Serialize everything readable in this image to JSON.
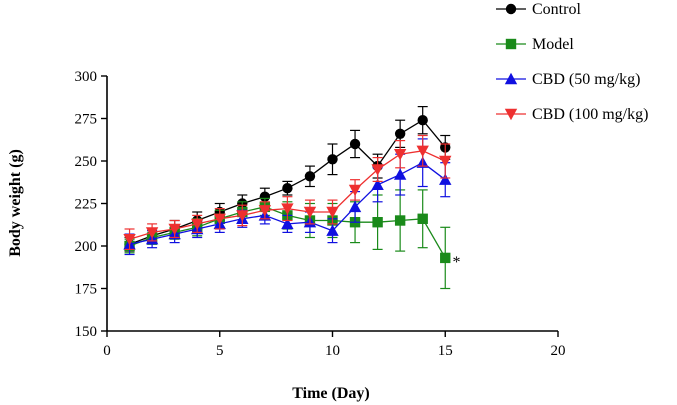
{
  "chart_data": {
    "type": "line",
    "title": "",
    "xlabel": "Time (Day)",
    "ylabel": "Body weight (g)",
    "xlim": [
      0,
      20
    ],
    "ylim": [
      150,
      300
    ],
    "xticks": [
      0,
      5,
      10,
      15,
      20
    ],
    "yticks": [
      150,
      175,
      200,
      225,
      250,
      275,
      300
    ],
    "x": [
      1,
      2,
      3,
      4,
      5,
      6,
      7,
      8,
      9,
      10,
      11,
      12,
      13,
      14,
      15
    ],
    "series": [
      {
        "name": "Control",
        "color": "#000000",
        "marker": "circle",
        "values": [
          201,
          206,
          210,
          215,
          220,
          225,
          229,
          234,
          241,
          251,
          260,
          247,
          266,
          274,
          258
        ],
        "errors": [
          4,
          4,
          5,
          5,
          5,
          5,
          5,
          4,
          6,
          9,
          8,
          7,
          8,
          8,
          7
        ]
      },
      {
        "name": "Model",
        "color": "#1a8a1a",
        "marker": "square",
        "values": [
          200,
          205,
          208,
          211,
          216,
          220,
          223,
          218,
          215,
          215,
          214,
          214,
          215,
          216,
          193
        ],
        "errors": [
          4,
          4,
          4,
          5,
          5,
          6,
          5,
          8,
          10,
          10,
          12,
          16,
          18,
          17,
          18
        ]
      },
      {
        "name": "CBD (50 mg/kg)",
        "color": "#1010e0",
        "marker": "triangle-up",
        "values": [
          201,
          204,
          207,
          210,
          213,
          216,
          218,
          213,
          214,
          209,
          223,
          236,
          242,
          249,
          239
        ],
        "errors": [
          6,
          5,
          5,
          5,
          5,
          5,
          5,
          5,
          6,
          7,
          9,
          10,
          12,
          14,
          10
        ]
      },
      {
        "name": "CBD (100 mg/kg)",
        "color": "#ee3030",
        "marker": "triangle-down",
        "values": [
          204,
          208,
          210,
          213,
          216,
          218,
          221,
          222,
          220,
          220,
          233,
          245,
          254,
          256,
          250
        ],
        "errors": [
          6,
          5,
          5,
          5,
          6,
          6,
          5,
          7,
          7,
          7,
          6,
          7,
          8,
          9,
          10
        ]
      }
    ],
    "annotations": [
      {
        "text": "*",
        "x": 15.5,
        "y": 193
      }
    ],
    "legend_position": "top-right"
  }
}
